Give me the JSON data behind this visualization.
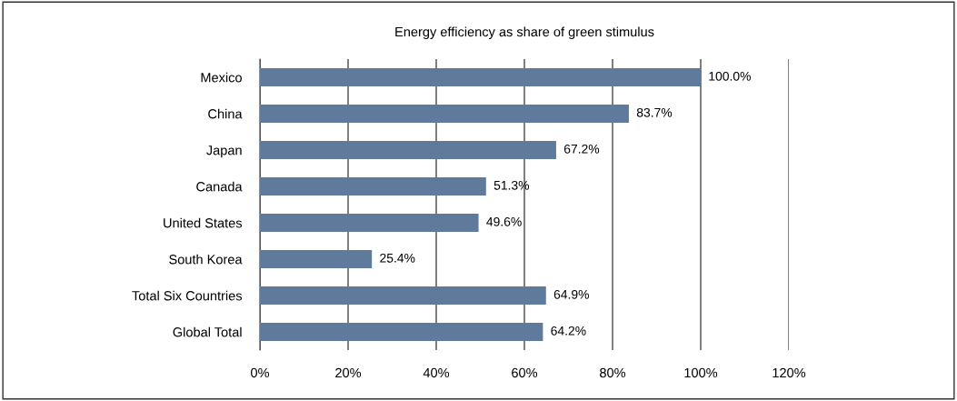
{
  "chart_data": {
    "type": "bar",
    "orientation": "horizontal",
    "title": "Energy efficiency as share of green stimulus",
    "categories": [
      "Mexico",
      "China",
      "Japan",
      "Canada",
      "United States",
      "South Korea",
      "Total Six Countries",
      "Global Total"
    ],
    "values": [
      100.0,
      83.7,
      67.2,
      51.3,
      49.6,
      25.4,
      64.9,
      64.2
    ],
    "value_labels": [
      "100.0%",
      "83.7%",
      "67.2%",
      "51.3%",
      "49.6%",
      "25.4%",
      "64.9%",
      "64.2%"
    ],
    "color": "#5f7a9a",
    "xlim": [
      0,
      120
    ],
    "xticks": [
      {
        "value": 0,
        "label": "0%"
      },
      {
        "value": 20,
        "label": "20%"
      },
      {
        "value": 40,
        "label": "40%"
      },
      {
        "value": 60,
        "label": "60%"
      },
      {
        "value": 80,
        "label": "80%"
      },
      {
        "value": 100,
        "label": "100%"
      },
      {
        "value": 120,
        "label": "120%"
      }
    ],
    "grid": "x"
  }
}
